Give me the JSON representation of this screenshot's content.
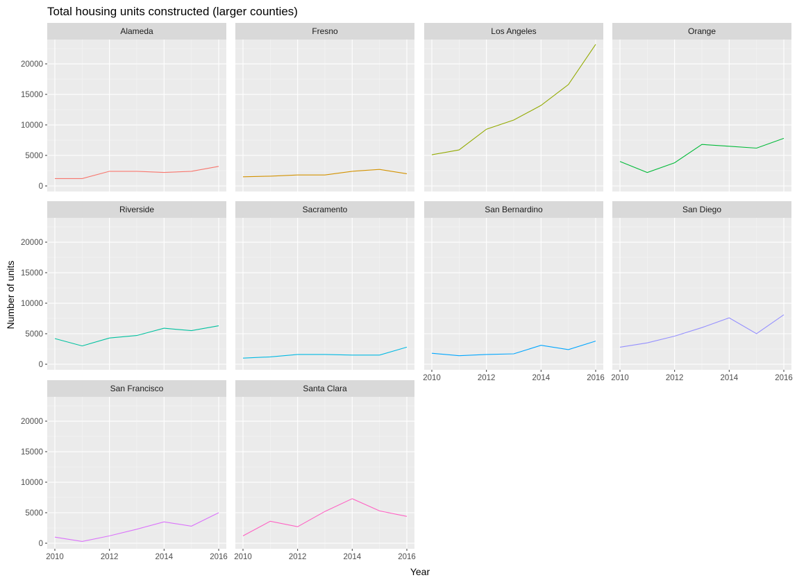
{
  "chart_data": {
    "type": "line",
    "title": "Total housing units constructed (larger counties)",
    "xlabel": "Year",
    "ylabel": "Number of units",
    "xlim": [
      2010,
      2016
    ],
    "ylim": [
      0,
      23300
    ],
    "x_ticks": [
      2010,
      2012,
      2014,
      2016
    ],
    "y_ticks": [
      0,
      5000,
      10000,
      15000,
      20000
    ],
    "grid": true,
    "facets": "4 columns, shared axes",
    "x": [
      2010,
      2011,
      2012,
      2013,
      2014,
      2015,
      2016
    ],
    "series": [
      {
        "name": "Alameda",
        "color": "#f8766d",
        "values": [
          1200,
          1200,
          2400,
          2400,
          2200,
          2400,
          3200
        ]
      },
      {
        "name": "Fresno",
        "color": "#d39200",
        "values": [
          1500,
          1600,
          1800,
          1800,
          2400,
          2700,
          2000
        ]
      },
      {
        "name": "Los Angeles",
        "color": "#93aa00",
        "values": [
          5100,
          5900,
          9300,
          10800,
          13200,
          16600,
          23200
        ]
      },
      {
        "name": "Orange",
        "color": "#00ba38",
        "values": [
          4000,
          2200,
          3800,
          6800,
          6500,
          6200,
          7800
        ]
      },
      {
        "name": "Riverside",
        "color": "#00c19f",
        "values": [
          4200,
          3000,
          4300,
          4700,
          5900,
          5500,
          6300
        ]
      },
      {
        "name": "Sacramento",
        "color": "#00b9e3",
        "values": [
          1000,
          1200,
          1600,
          1600,
          1500,
          1500,
          2800
        ]
      },
      {
        "name": "San Bernardino",
        "color": "#00a6ff",
        "values": [
          1800,
          1400,
          1600,
          1700,
          3100,
          2400,
          3800
        ]
      },
      {
        "name": "San Diego",
        "color": "#9590ff",
        "values": [
          2800,
          3500,
          4600,
          6000,
          7600,
          5000,
          8100
        ]
      },
      {
        "name": "San Francisco",
        "color": "#db72fb",
        "values": [
          1000,
          300,
          1200,
          2300,
          3500,
          2800,
          5000
        ]
      },
      {
        "name": "Santa Clara",
        "color": "#ff61c3",
        "values": [
          1200,
          3600,
          2700,
          5200,
          7300,
          5300,
          4400
        ]
      }
    ]
  }
}
